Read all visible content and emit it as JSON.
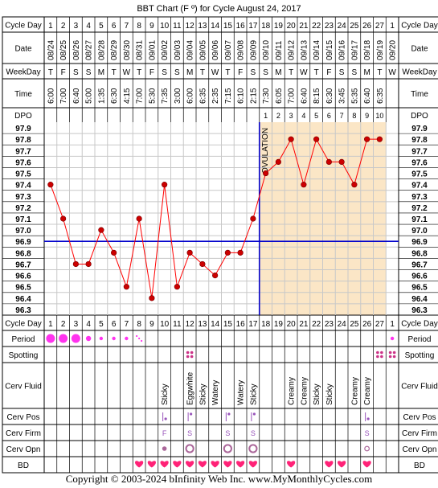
{
  "title": "BBT Chart (F º) for Cycle August 24, 2017",
  "row_labels": {
    "cycle_day": "Cycle Day",
    "date": "Date",
    "weekday": "WeekDay",
    "time": "Time",
    "dpo": "DPO",
    "period": "Period",
    "spotting": "Spotting",
    "cerv_fluid": "Cerv Fluid",
    "cerv_pos": "Cerv Pos",
    "cerv_firm": "Cerv Firm",
    "cerv_opn": "Cerv Opn",
    "bd": "BD"
  },
  "copyright": "Copyright © 2003-2024 bInfinity Web Inc.    www.MyMonthlyCycles.com",
  "colors": {
    "line": "#ff0000",
    "point": "#cc0000",
    "coverline": "#0000cc",
    "luteal_bg": "#fbe6c6",
    "grid": "#c8c8c8",
    "heart": "#ff2277",
    "period": "#ff33ee",
    "spotting": "#cc3388"
  },
  "chart_data": {
    "type": "line",
    "title": "BBT Chart (F º) for Cycle August 24, 2017",
    "cycle_days": [
      "1",
      "2",
      "3",
      "4",
      "5",
      "6",
      "7",
      "8",
      "9",
      "10",
      "11",
      "12",
      "13",
      "14",
      "15",
      "16",
      "17",
      "18",
      "19",
      "20",
      "21",
      "22",
      "23",
      "24",
      "25",
      "26",
      "27",
      "1"
    ],
    "dates": [
      "08/24",
      "08/25",
      "08/26",
      "08/27",
      "08/28",
      "08/29",
      "08/30",
      "08/31",
      "09/01",
      "09/02",
      "09/03",
      "09/04",
      "09/05",
      "09/06",
      "09/07",
      "09/08",
      "09/09",
      "09/10",
      "09/11",
      "09/12",
      "09/13",
      "09/14",
      "09/15",
      "09/16",
      "09/17",
      "09/18",
      "09/19",
      "09/20"
    ],
    "weekdays": [
      "T",
      "F",
      "S",
      "S",
      "M",
      "T",
      "W",
      "T",
      "F",
      "S",
      "S",
      "M",
      "T",
      "W",
      "T",
      "F",
      "S",
      "S",
      "M",
      "T",
      "W",
      "T",
      "F",
      "S",
      "S",
      "M",
      "T",
      "W"
    ],
    "times": [
      "6:00",
      "7:00",
      "6:40",
      "5:00",
      "1:35",
      "6:30",
      "4:15",
      "7:00",
      "5:30",
      "7:35",
      "3:00",
      "6:00",
      "6:35",
      "2:35",
      "7:15",
      "6:10",
      "2:15",
      "7:30",
      "6:05",
      "7:00",
      "6:40",
      "8:15",
      "6:30",
      "3:45",
      "5:35",
      "6:40",
      "6:35",
      ""
    ],
    "dpo": [
      "",
      "",
      "",
      "",
      "",
      "",
      "",
      "",
      "",
      "",
      "",
      "",
      "",
      "",
      "",
      "",
      "",
      "1",
      "2",
      "3",
      "4",
      "5",
      "6",
      "7",
      "8",
      "9",
      "10",
      ""
    ],
    "temperatures": [
      97.4,
      97.1,
      96.7,
      96.7,
      97.0,
      96.8,
      96.5,
      97.1,
      96.4,
      97.4,
      96.5,
      96.8,
      96.7,
      96.6,
      96.8,
      96.8,
      97.1,
      97.5,
      97.6,
      97.8,
      97.4,
      97.8,
      97.6,
      97.6,
      97.4,
      97.8,
      97.8,
      null
    ],
    "y_ticks": [
      97.9,
      97.8,
      97.7,
      97.6,
      97.5,
      97.4,
      97.3,
      97.2,
      97.1,
      97.0,
      96.9,
      96.8,
      96.7,
      96.6,
      96.5,
      96.4,
      96.3
    ],
    "ylim": [
      96.3,
      97.9
    ],
    "coverline": 96.9,
    "ovulation_day_index": 16,
    "ovulation_label": "OVULATION",
    "period": [
      "heavy",
      "heavy",
      "heavy",
      "medium",
      "light",
      "light",
      "light",
      "spotting",
      "",
      "",
      "",
      "",
      "",
      "",
      "",
      "",
      "",
      "",
      "",
      "",
      "",
      "",
      "",
      "",
      "",
      "",
      "",
      "light"
    ],
    "spotting": [
      false,
      false,
      false,
      false,
      false,
      false,
      false,
      false,
      false,
      false,
      false,
      true,
      false,
      false,
      false,
      false,
      false,
      false,
      false,
      false,
      false,
      false,
      false,
      false,
      false,
      false,
      true,
      true
    ],
    "cerv_fluid": [
      "",
      "",
      "",
      "",
      "",
      "",
      "",
      "",
      "",
      "Sticky",
      "",
      "Eggwhite",
      "Sticky",
      "Watery",
      "",
      "Watery",
      "Sticky",
      "",
      "",
      "Creamy",
      "Creamy",
      "Sticky",
      "Sticky",
      "",
      "Creamy",
      "Creamy",
      "",
      ""
    ],
    "cerv_pos": [
      "",
      "",
      "",
      "",
      "",
      "",
      "",
      "",
      "",
      "low",
      "",
      "medium",
      "",
      "",
      "medium",
      "",
      "medium",
      "",
      "",
      "",
      "",
      "",
      "",
      "",
      "",
      "low",
      "",
      ""
    ],
    "cerv_firm": [
      "",
      "",
      "",
      "",
      "",
      "",
      "",
      "",
      "",
      "F",
      "",
      "S",
      "",
      "",
      "S",
      "",
      "S",
      "",
      "",
      "",
      "",
      "",
      "",
      "",
      "",
      "S",
      "",
      ""
    ],
    "cerv_opn": [
      "",
      "",
      "",
      "",
      "",
      "",
      "",
      "",
      "",
      "closed",
      "",
      "open",
      "",
      "",
      "open",
      "",
      "open",
      "",
      "",
      "",
      "",
      "",
      "",
      "",
      "",
      "medium",
      "",
      ""
    ],
    "bd": [
      false,
      false,
      false,
      false,
      false,
      false,
      false,
      true,
      true,
      true,
      true,
      true,
      true,
      true,
      true,
      true,
      true,
      false,
      false,
      true,
      false,
      false,
      true,
      true,
      false,
      true,
      false,
      false
    ]
  }
}
